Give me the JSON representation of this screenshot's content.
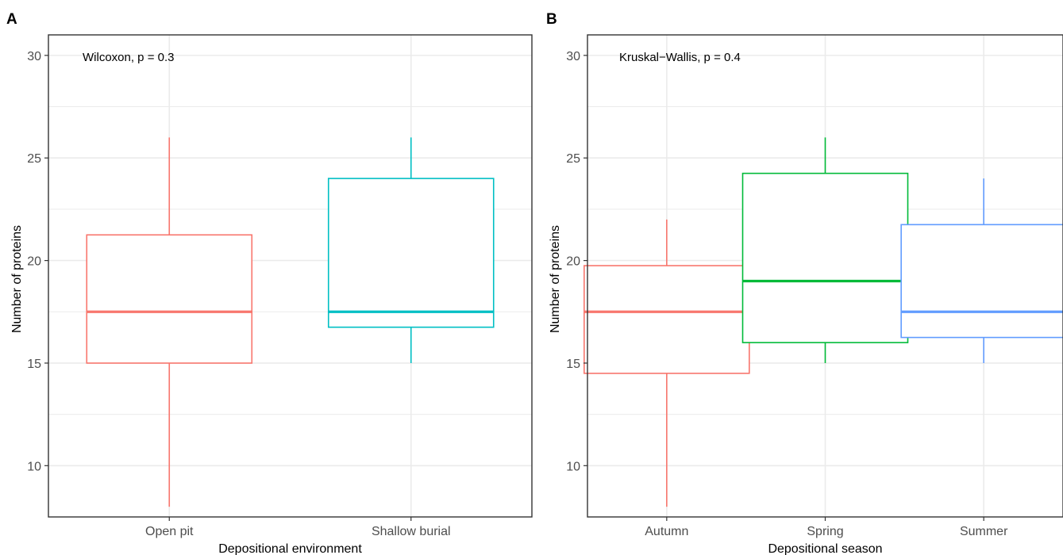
{
  "chart_data": [
    {
      "panel": "A",
      "type": "box",
      "annotation": "Wilcoxon, p = 0.3",
      "xlabel": "Depositional environment",
      "ylabel": "Number of proteins",
      "ylim": [
        7.5,
        31
      ],
      "yticks": [
        10,
        15,
        20,
        25,
        30
      ],
      "grid": true,
      "legend": "none",
      "categories": [
        "Open pit",
        "Shallow burial"
      ],
      "series": [
        {
          "category": "Open pit",
          "color": "#F8766D",
          "min": 8,
          "q1": 15,
          "median": 17.5,
          "q3": 21.25,
          "max": 26
        },
        {
          "category": "Shallow burial",
          "color": "#00BFC4",
          "min": 15,
          "q1": 16.75,
          "median": 17.5,
          "q3": 24,
          "max": 26
        }
      ]
    },
    {
      "panel": "B",
      "type": "box",
      "annotation": "Kruskal−Wallis, p = 0.4",
      "xlabel": "Depositional season",
      "ylabel": "Number of proteins",
      "ylim": [
        7.5,
        31
      ],
      "yticks": [
        10,
        15,
        20,
        25,
        30
      ],
      "grid": true,
      "legend": "none",
      "categories": [
        "Autumn",
        "Spring",
        "Summer"
      ],
      "series": [
        {
          "category": "Autumn",
          "color": "#F8766D",
          "min": 8,
          "q1": 14.5,
          "median": 17.5,
          "q3": 19.75,
          "max": 22
        },
        {
          "category": "Spring",
          "color": "#00BA38",
          "min": 15,
          "q1": 16,
          "median": 19,
          "q3": 24.25,
          "max": 26
        },
        {
          "category": "Summer",
          "color": "#619CFF",
          "min": 15,
          "q1": 16.25,
          "median": 17.5,
          "q3": 21.75,
          "max": 24
        }
      ]
    }
  ]
}
